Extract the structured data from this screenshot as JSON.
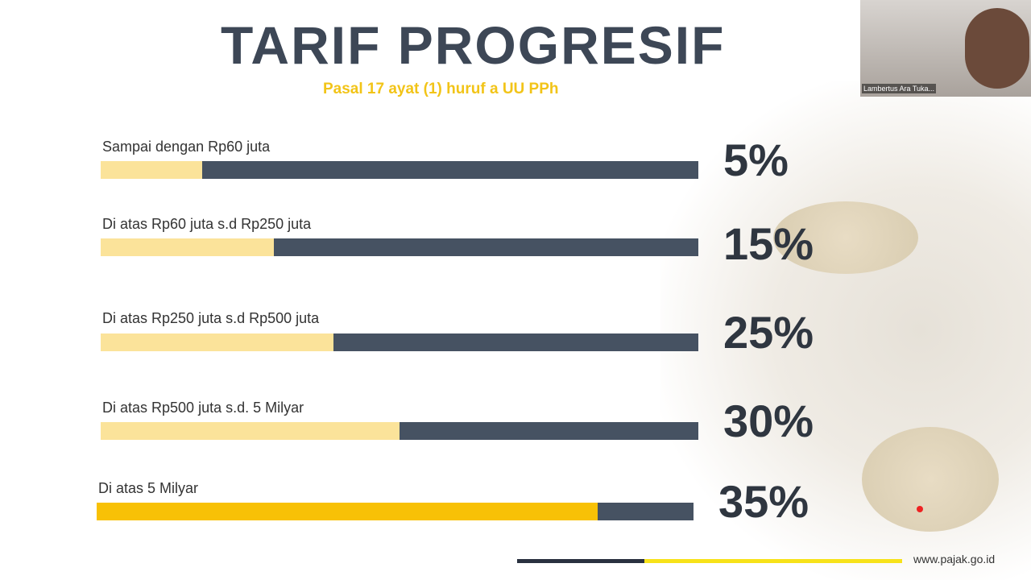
{
  "title": "TARIF PROGRESIF",
  "subtitle": "Pasal 17 ayat (1) huruf a UU PPh",
  "brackets": [
    {
      "label": "Sampai dengan Rp60 juta",
      "rate": "5%",
      "fill": 0.17
    },
    {
      "label": "Di atas Rp60 juta s.d Rp250 juta",
      "rate": "15%",
      "fill": 0.29
    },
    {
      "label": "Di atas Rp250 juta s.d Rp500 juta",
      "rate": "25%",
      "fill": 0.39
    },
    {
      "label": "Di atas Rp500 juta s.d. 5 Milyar",
      "rate": "30%",
      "fill": 0.5
    },
    {
      "label": "Di atas 5 Milyar",
      "rate": "35%",
      "fill": 0.84
    }
  ],
  "footer": {
    "url": "www.pajak.go.id"
  },
  "video": {
    "participant_name": "Lambertus Ara Tuka..."
  },
  "colors": {
    "dark": "#465262",
    "light_yellow": "#fbe39a",
    "yellow": "#f8c106"
  }
}
